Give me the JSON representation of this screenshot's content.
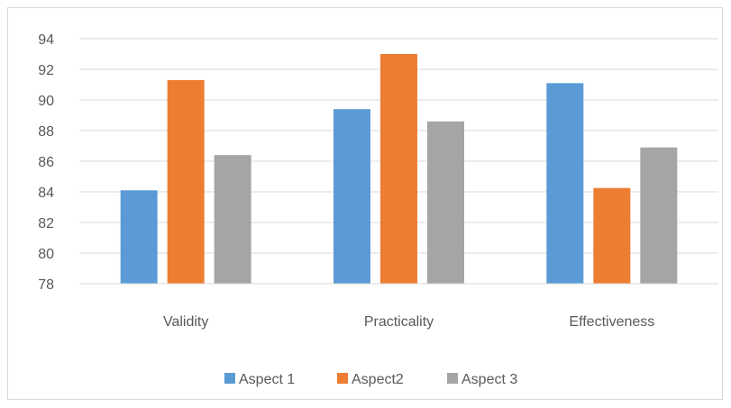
{
  "chart_data": {
    "type": "bar",
    "title": "",
    "xlabel": "",
    "ylabel": "",
    "categories": [
      "Validity",
      "Practicality",
      "Effectiveness"
    ],
    "series": [
      {
        "name": "Aspect 1",
        "color": "#5b9bd5",
        "values": [
          84.1,
          89.4,
          91.1
        ]
      },
      {
        "name": "Aspect2",
        "color": "#ed7d31",
        "values": [
          91.3,
          93.0,
          84.25
        ]
      },
      {
        "name": "Aspect 3",
        "color": "#a5a5a5",
        "values": [
          86.4,
          88.6,
          86.9
        ]
      }
    ],
    "ylim": [
      78,
      94
    ],
    "yticks": [
      "78",
      "80",
      "82",
      "84",
      "86",
      "88",
      "90",
      "92",
      "94"
    ],
    "grid": true,
    "legend_position": "bottom"
  }
}
